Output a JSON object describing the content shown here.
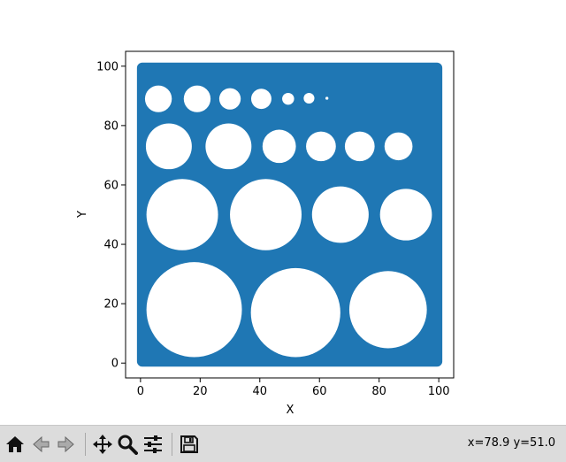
{
  "chart_data": {
    "type": "scatter",
    "title": "",
    "xlabel": "X",
    "ylabel": "Y",
    "xlim": [
      -5,
      105
    ],
    "ylim": [
      -5,
      105
    ],
    "xticks": [
      "0",
      "20",
      "40",
      "60",
      "80",
      "100"
    ],
    "yticks": [
      "0",
      "20",
      "40",
      "60",
      "80",
      "100"
    ],
    "grid": false,
    "fill_color": "#1f77b4",
    "hole_color": "#ffffff",
    "filled_region": {
      "x": [
        0,
        100
      ],
      "y": [
        0,
        100
      ]
    },
    "holes": [
      {
        "cx": 18,
        "cy": 18,
        "r": 16
      },
      {
        "cx": 52,
        "cy": 17,
        "r": 15
      },
      {
        "cx": 83,
        "cy": 18,
        "r": 13
      },
      {
        "cx": 14,
        "cy": 50,
        "r": 12
      },
      {
        "cx": 42,
        "cy": 50,
        "r": 12
      },
      {
        "cx": 67,
        "cy": 50,
        "r": 9.5
      },
      {
        "cx": 89,
        "cy": 50,
        "r": 8.7
      },
      {
        "cx": 9.5,
        "cy": 73,
        "r": 7.7
      },
      {
        "cx": 29.5,
        "cy": 73,
        "r": 7.7
      },
      {
        "cx": 46.5,
        "cy": 73,
        "r": 5.6
      },
      {
        "cx": 60.5,
        "cy": 73,
        "r": 5
      },
      {
        "cx": 73.5,
        "cy": 73,
        "r": 5
      },
      {
        "cx": 86.5,
        "cy": 73,
        "r": 4.7
      },
      {
        "cx": 6,
        "cy": 89,
        "r": 4.5
      },
      {
        "cx": 19,
        "cy": 89,
        "r": 4.5
      },
      {
        "cx": 30,
        "cy": 89,
        "r": 3.6
      },
      {
        "cx": 40.5,
        "cy": 89,
        "r": 3.4
      },
      {
        "cx": 49.5,
        "cy": 89,
        "r": 2
      },
      {
        "cx": 56.5,
        "cy": 89.2,
        "r": 1.8
      },
      {
        "cx": 62.5,
        "cy": 89.2,
        "r": 0.5
      }
    ]
  },
  "toolbar": {
    "home_icon": "home-icon",
    "back_icon": "back-arrow-icon",
    "forward_icon": "forward-arrow-icon",
    "pan_icon": "pan-move-icon",
    "zoom_icon": "zoom-magnifier-icon",
    "configure_icon": "configure-sliders-icon",
    "save_icon": "save-floppy-icon",
    "coordinates": "x=78.9 y=51.0"
  }
}
